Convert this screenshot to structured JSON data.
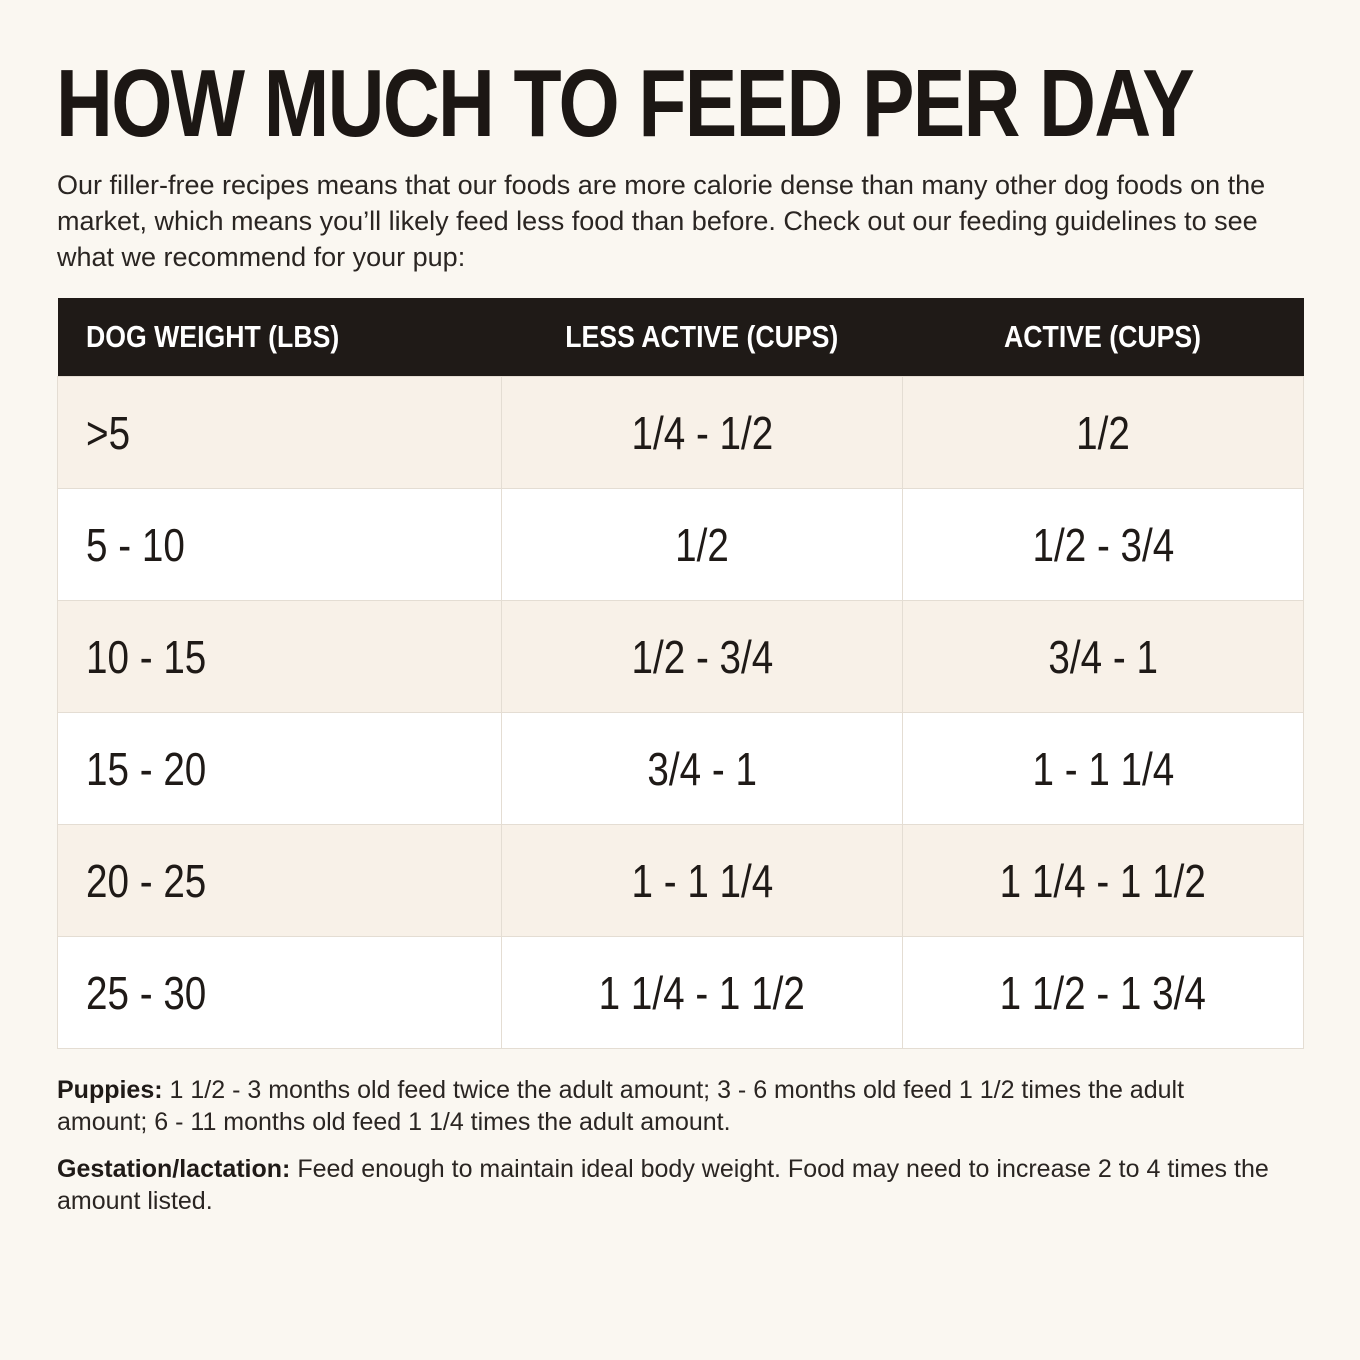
{
  "title": "HOW MUCH TO FEED PER DAY",
  "intro": "Our filler-free recipes means that our foods are more calorie dense than many other dog foods on the market, which means you’ll likely feed less food than before. Check out our feeding guidelines to see what we recommend for your pup:",
  "table": {
    "headers": [
      "DOG WEIGHT (LBS)",
      "LESS ACTIVE (CUPS)",
      "ACTIVE (CUPS)"
    ],
    "rows": [
      [
        ">5",
        "1/4 - 1/2",
        "1/2"
      ],
      [
        "5 - 10",
        "1/2",
        "1/2 - 3/4"
      ],
      [
        "10 - 15",
        "1/2 - 3/4",
        "3/4 - 1"
      ],
      [
        "15 - 20",
        "3/4 - 1",
        "1 - 1 1/4"
      ],
      [
        "20 - 25",
        "1 - 1 1/4",
        "1 1/4 - 1 1/2"
      ],
      [
        "25 - 30",
        "1 1/4 - 1 1/2",
        "1 1/2 - 1 3/4"
      ]
    ]
  },
  "notes": {
    "puppies_label": "Puppies:",
    "puppies_text": " 1 1/2 - 3 months old feed twice the adult amount; 3 - 6 months old feed 1 1/2 times the adult amount; 6 - 11 months old feed 1 1/4 times the adult amount.",
    "gestation_label": "Gestation/lactation:",
    "gestation_text": " Feed enough to maintain ideal body weight. Food may need to increase 2 to 4 times the amount listed."
  }
}
